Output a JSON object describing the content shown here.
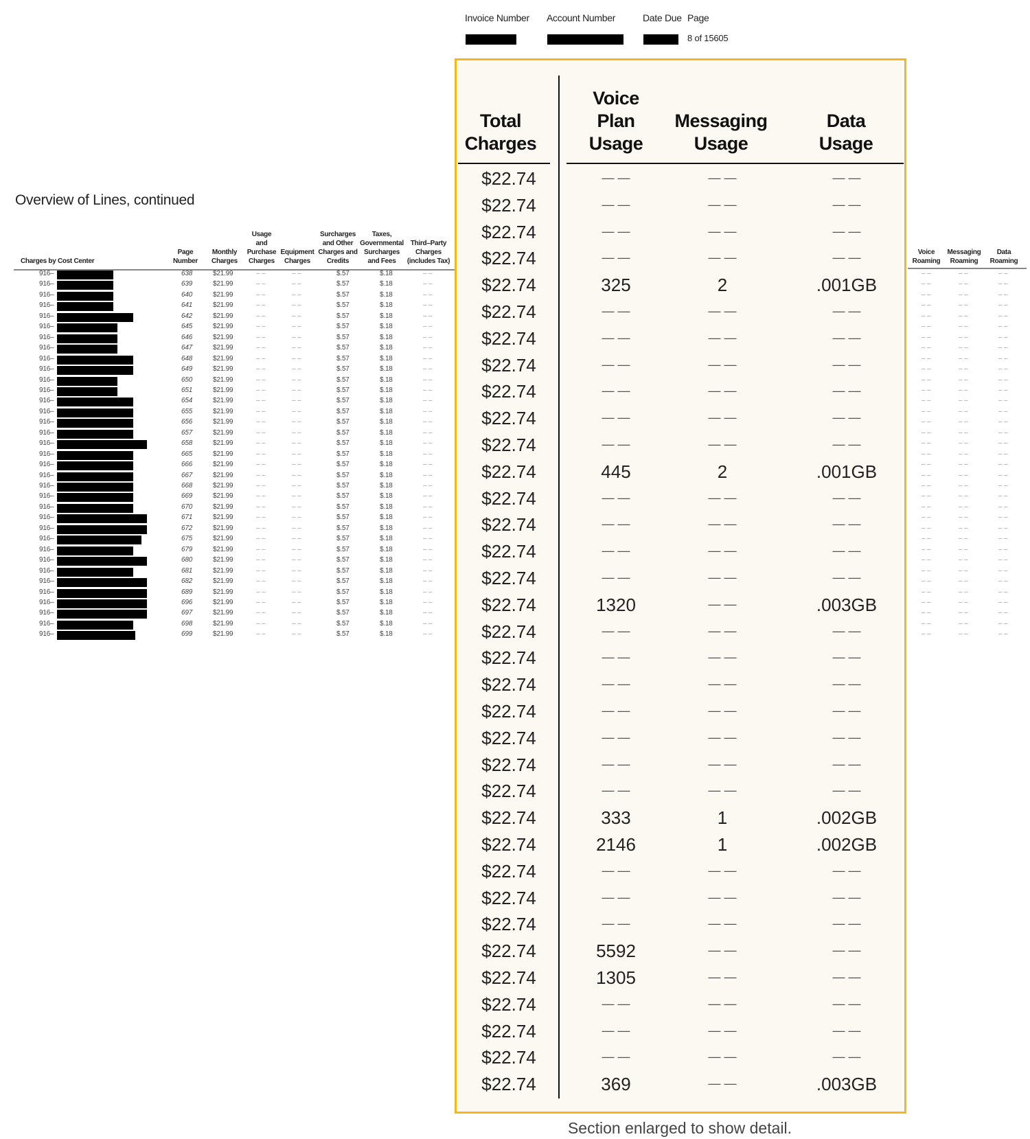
{
  "header": {
    "invoice_label": "Invoice Number",
    "account_label": "Account Number",
    "date_due_label": "Date Due",
    "page_label": "Page",
    "page_value": "8 of 15605"
  },
  "title": "Overview of Lines, continued",
  "left_table": {
    "columns": [
      "Charges by Cost Center",
      "Page Number",
      "Monthly Charges",
      "Usage and Purchase Charges",
      "Equipment Charges",
      "Surcharges and Other Charges and Credits",
      "Taxes, Governmental Surcharges and Fees",
      "Third–Party Charges (includes Tax)"
    ],
    "line_prefix": "916–",
    "rows": [
      {
        "page": "638"
      },
      {
        "page": "639"
      },
      {
        "page": "640"
      },
      {
        "page": "641"
      },
      {
        "page": "642"
      },
      {
        "page": "645"
      },
      {
        "page": "646"
      },
      {
        "page": "647"
      },
      {
        "page": "648"
      },
      {
        "page": "649"
      },
      {
        "page": "650"
      },
      {
        "page": "651"
      },
      {
        "page": "654"
      },
      {
        "page": "655"
      },
      {
        "page": "656"
      },
      {
        "page": "657"
      },
      {
        "page": "658"
      },
      {
        "page": "665"
      },
      {
        "page": "666"
      },
      {
        "page": "667"
      },
      {
        "page": "668"
      },
      {
        "page": "669"
      },
      {
        "page": "670"
      },
      {
        "page": "671"
      },
      {
        "page": "672"
      },
      {
        "page": "675"
      },
      {
        "page": "679"
      },
      {
        "page": "680"
      },
      {
        "page": "681"
      },
      {
        "page": "682"
      },
      {
        "page": "689"
      },
      {
        "page": "696"
      },
      {
        "page": "697"
      },
      {
        "page": "698"
      },
      {
        "page": "699"
      }
    ],
    "common": {
      "monthly": "$21.99",
      "usage": "– –",
      "equipment": "– –",
      "surcharges": "$.57",
      "taxes": "$.18",
      "third_party": "– –"
    }
  },
  "roaming_table": {
    "columns": [
      "Voice Roaming",
      "Messaging Roaming",
      "Data Roaming"
    ],
    "empty": "– –"
  },
  "enlarged": {
    "columns": [
      "Total Charges",
      "Voice Plan Usage",
      "Messaging Usage",
      "Data Usage"
    ],
    "empty": "— —",
    "rows": [
      {
        "total": "$22.74",
        "voice": "",
        "msg": "",
        "data": ""
      },
      {
        "total": "$22.74",
        "voice": "",
        "msg": "",
        "data": ""
      },
      {
        "total": "$22.74",
        "voice": "",
        "msg": "",
        "data": ""
      },
      {
        "total": "$22.74",
        "voice": "",
        "msg": "",
        "data": ""
      },
      {
        "total": "$22.74",
        "voice": "325",
        "msg": "2",
        "data": ".001GB"
      },
      {
        "total": "$22.74",
        "voice": "",
        "msg": "",
        "data": ""
      },
      {
        "total": "$22.74",
        "voice": "",
        "msg": "",
        "data": ""
      },
      {
        "total": "$22.74",
        "voice": "",
        "msg": "",
        "data": ""
      },
      {
        "total": "$22.74",
        "voice": "",
        "msg": "",
        "data": ""
      },
      {
        "total": "$22.74",
        "voice": "",
        "msg": "",
        "data": ""
      },
      {
        "total": "$22.74",
        "voice": "",
        "msg": "",
        "data": ""
      },
      {
        "total": "$22.74",
        "voice": "445",
        "msg": "2",
        "data": ".001GB"
      },
      {
        "total": "$22.74",
        "voice": "",
        "msg": "",
        "data": ""
      },
      {
        "total": "$22.74",
        "voice": "",
        "msg": "",
        "data": ""
      },
      {
        "total": "$22.74",
        "voice": "",
        "msg": "",
        "data": ""
      },
      {
        "total": "$22.74",
        "voice": "",
        "msg": "",
        "data": ""
      },
      {
        "total": "$22.74",
        "voice": "1320",
        "msg": "",
        "data": ".003GB"
      },
      {
        "total": "$22.74",
        "voice": "",
        "msg": "",
        "data": ""
      },
      {
        "total": "$22.74",
        "voice": "",
        "msg": "",
        "data": ""
      },
      {
        "total": "$22.74",
        "voice": "",
        "msg": "",
        "data": ""
      },
      {
        "total": "$22.74",
        "voice": "",
        "msg": "",
        "data": ""
      },
      {
        "total": "$22.74",
        "voice": "",
        "msg": "",
        "data": ""
      },
      {
        "total": "$22.74",
        "voice": "",
        "msg": "",
        "data": ""
      },
      {
        "total": "$22.74",
        "voice": "",
        "msg": "",
        "data": ""
      },
      {
        "total": "$22.74",
        "voice": "333",
        "msg": "1",
        "data": ".002GB"
      },
      {
        "total": "$22.74",
        "voice": "2146",
        "msg": "1",
        "data": ".002GB"
      },
      {
        "total": "$22.74",
        "voice": "",
        "msg": "",
        "data": ""
      },
      {
        "total": "$22.74",
        "voice": "",
        "msg": "",
        "data": ""
      },
      {
        "total": "$22.74",
        "voice": "",
        "msg": "",
        "data": ""
      },
      {
        "total": "$22.74",
        "voice": "5592",
        "msg": "",
        "data": ""
      },
      {
        "total": "$22.74",
        "voice": "1305",
        "msg": "",
        "data": ""
      },
      {
        "total": "$22.74",
        "voice": "",
        "msg": "",
        "data": ""
      },
      {
        "total": "$22.74",
        "voice": "",
        "msg": "",
        "data": ""
      },
      {
        "total": "$22.74",
        "voice": "",
        "msg": "",
        "data": ""
      },
      {
        "total": "$22.74",
        "voice": "369",
        "msg": "",
        "data": ".003GB"
      }
    ],
    "caption": "Section enlarged to show detail.",
    "border_color": "#f5b81c"
  }
}
